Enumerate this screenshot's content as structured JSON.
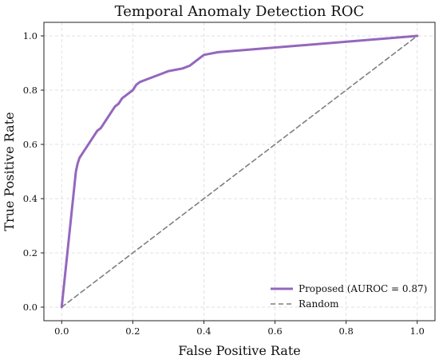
{
  "chart_data": {
    "type": "line",
    "title": "Temporal Anomaly Detection ROC",
    "xlabel": "False Positive Rate",
    "ylabel": "True Positive Rate",
    "xlim": [
      -0.05,
      1.05
    ],
    "ylim": [
      -0.05,
      1.05
    ],
    "xticks": [
      0.0,
      0.2,
      0.4,
      0.6,
      0.8,
      1.0
    ],
    "yticks": [
      0.0,
      0.2,
      0.4,
      0.6,
      0.8,
      1.0
    ],
    "xtick_labels": [
      "0.0",
      "0.2",
      "0.4",
      "0.6",
      "0.8",
      "1.0"
    ],
    "ytick_labels": [
      "0.0",
      "0.2",
      "0.4",
      "0.6",
      "0.8",
      "1.0"
    ],
    "grid": true,
    "legend_position": "lower-right",
    "series": [
      {
        "name": "Proposed (AUROC = 0.87)",
        "color": "#9467bd",
        "style": "solid",
        "x": [
          0.0,
          0.04,
          0.045,
          0.05,
          0.06,
          0.07,
          0.08,
          0.09,
          0.1,
          0.11,
          0.12,
          0.13,
          0.14,
          0.15,
          0.16,
          0.17,
          0.18,
          0.19,
          0.2,
          0.21,
          0.22,
          0.24,
          0.26,
          0.28,
          0.3,
          0.32,
          0.34,
          0.36,
          0.38,
          0.4,
          0.44,
          1.0
        ],
        "y": [
          0.0,
          0.5,
          0.53,
          0.55,
          0.57,
          0.59,
          0.61,
          0.63,
          0.65,
          0.66,
          0.68,
          0.7,
          0.72,
          0.74,
          0.75,
          0.77,
          0.78,
          0.79,
          0.8,
          0.82,
          0.83,
          0.84,
          0.85,
          0.86,
          0.87,
          0.875,
          0.88,
          0.89,
          0.91,
          0.93,
          0.94,
          1.0
        ]
      },
      {
        "name": "Random",
        "color": "#7f7f7f",
        "style": "dashed",
        "x": [
          0.0,
          1.0
        ],
        "y": [
          0.0,
          1.0
        ]
      }
    ]
  }
}
